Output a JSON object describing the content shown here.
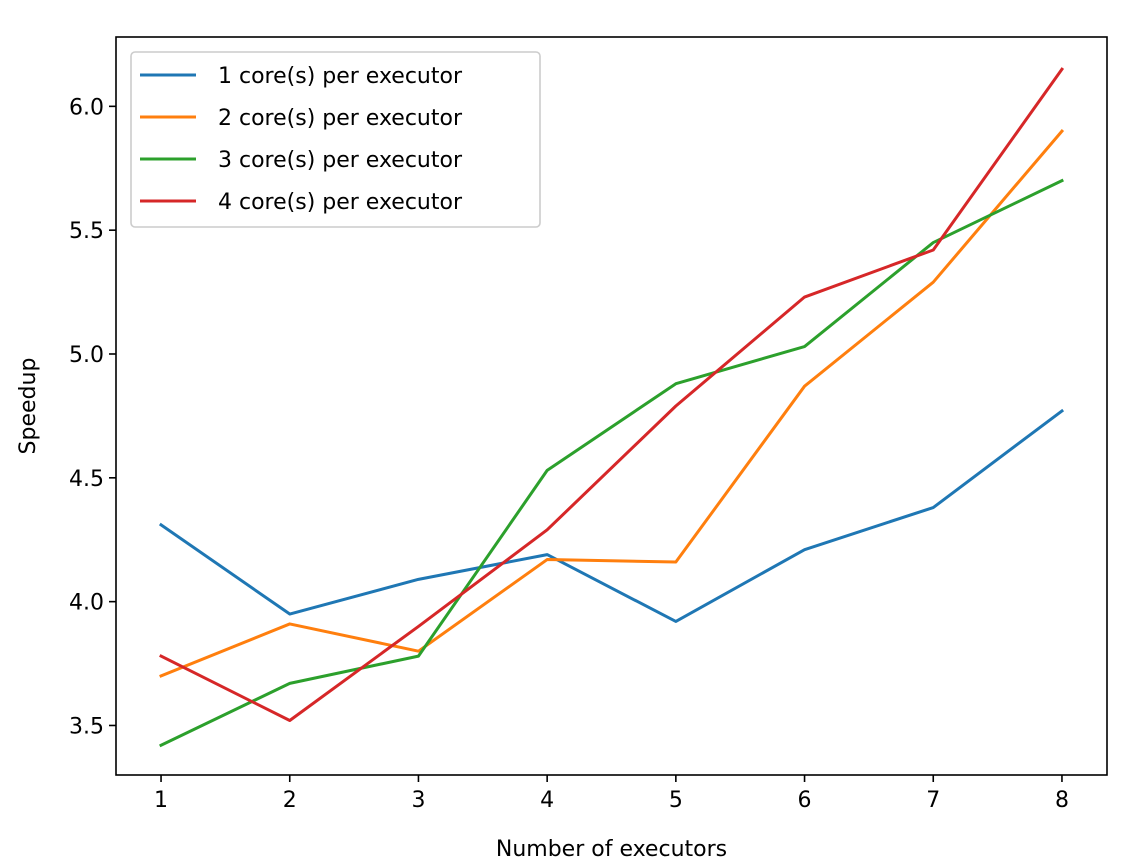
{
  "chart_data": {
    "type": "line",
    "title": "",
    "xlabel": "Number of executors",
    "ylabel": "Speedup",
    "x": [
      1,
      2,
      3,
      4,
      5,
      6,
      7,
      8
    ],
    "xlim": [
      0.65,
      8.35
    ],
    "ylim": [
      3.3,
      6.28
    ],
    "xticks": [
      1,
      2,
      3,
      4,
      5,
      6,
      7,
      8
    ],
    "yticks": [
      3.5,
      4.0,
      4.5,
      5.0,
      5.5,
      6.0
    ],
    "ytick_labels": [
      "3.5",
      "4.0",
      "4.5",
      "5.0",
      "5.5",
      "6.0"
    ],
    "grid": false,
    "legend_position": "top-left",
    "series": [
      {
        "name": "1 core(s) per executor",
        "color": "#1f77b4",
        "values": [
          4.31,
          3.95,
          4.09,
          4.19,
          3.92,
          4.21,
          4.38,
          4.77
        ]
      },
      {
        "name": "2 core(s) per executor",
        "color": "#ff7f0e",
        "values": [
          3.7,
          3.91,
          3.8,
          4.17,
          4.16,
          4.87,
          5.29,
          5.9
        ]
      },
      {
        "name": "3 core(s) per executor",
        "color": "#2ca02c",
        "values": [
          3.42,
          3.67,
          3.78,
          4.53,
          4.88,
          5.03,
          5.45,
          5.7
        ]
      },
      {
        "name": "4 core(s) per executor",
        "color": "#d62728",
        "values": [
          3.78,
          3.52,
          3.9,
          4.29,
          4.79,
          5.23,
          5.42,
          6.15
        ]
      }
    ]
  }
}
